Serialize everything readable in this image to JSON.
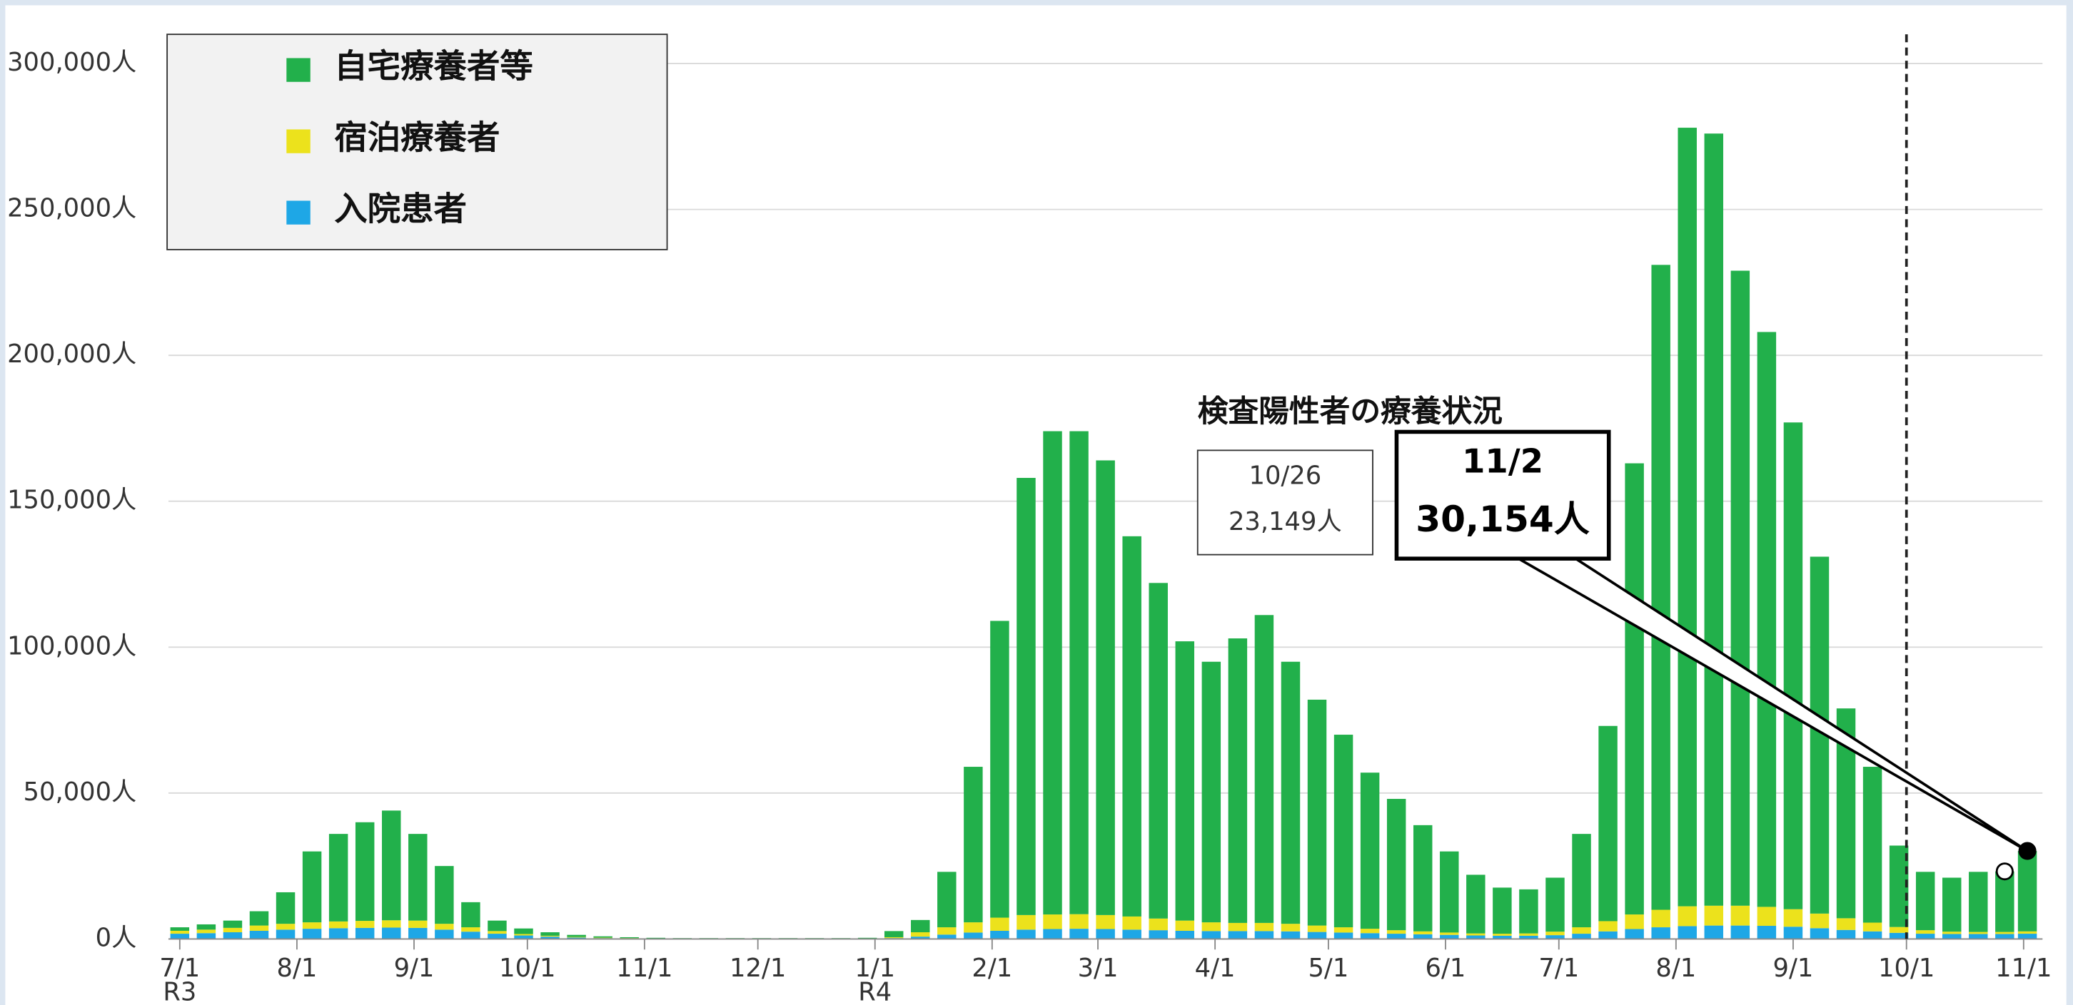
{
  "chart_data": {
    "type": "stacked_bar",
    "annotations": {
      "title": "検査陽性者の療養状況",
      "callouts": [
        {
          "lines": [
            "10/26",
            "23,149人"
          ]
        },
        {
          "lines": [
            "11/2",
            "30,154人"
          ]
        }
      ]
    },
    "x": [
      0,
      7,
      14,
      21,
      28,
      35,
      42,
      49,
      56,
      63,
      70,
      77,
      84,
      91,
      98,
      105,
      112,
      119,
      126,
      133,
      140,
      147,
      154,
      161,
      168,
      175,
      182,
      189,
      196,
      203,
      210,
      217,
      224,
      231,
      238,
      245,
      252,
      259,
      266,
      273,
      280,
      287,
      294,
      301,
      308,
      315,
      322,
      329,
      336,
      343,
      350,
      357,
      364,
      371,
      378,
      385,
      392,
      399,
      406,
      413,
      420,
      427,
      434,
      441,
      448,
      455,
      462,
      469,
      476,
      483,
      489
    ],
    "series": [
      {
        "name": "自宅療養者等",
        "color": "#22b04b",
        "values": [
          1200,
          1800,
          2500,
          4900,
          10800,
          24300,
          30000,
          33800,
          37600,
          29700,
          19800,
          8600,
          3600,
          1900,
          1200,
          700,
          450,
          300,
          200,
          100,
          100,
          100,
          100,
          100,
          100,
          100,
          200,
          2100,
          4200,
          19000,
          53300,
          101700,
          149800,
          165600,
          165500,
          155800,
          130300,
          115000,
          95700,
          89300,
          97500,
          105500,
          89800,
          77400,
          66000,
          53500,
          45000,
          36400,
          27800,
          20100,
          15800,
          15100,
          18500,
          32000,
          66900,
          154600,
          221000,
          266800,
          264600,
          217600,
          197000,
          166800,
          122300,
          71900,
          53400,
          27900,
          20000,
          18500,
          20600,
          20749,
          27554
        ]
      },
      {
        "name": "宿泊療養者",
        "color": "#ece21c",
        "values": [
          1000,
          1200,
          1500,
          1800,
          2000,
          2200,
          2300,
          2400,
          2500,
          2500,
          2000,
          1500,
          900,
          500,
          300,
          200,
          150,
          100,
          50,
          50,
          50,
          50,
          50,
          50,
          50,
          50,
          50,
          300,
          1500,
          2500,
          3500,
          4500,
          5000,
          5000,
          5000,
          4800,
          4500,
          4000,
          3500,
          3000,
          2800,
          2800,
          2600,
          2200,
          1800,
          1500,
          1200,
          1000,
          800,
          700,
          700,
          800,
          1200,
          2200,
          3500,
          5000,
          6000,
          6800,
          6800,
          6800,
          6500,
          6000,
          5000,
          4000,
          3000,
          2000,
          1200,
          800,
          700,
          700,
          800
        ]
      },
      {
        "name": "入院患者",
        "color": "#1ea7e6",
        "values": [
          1800,
          2000,
          2300,
          2800,
          3200,
          3500,
          3700,
          3800,
          3900,
          3800,
          3200,
          2500,
          1800,
          1200,
          800,
          500,
          300,
          200,
          150,
          150,
          150,
          150,
          150,
          150,
          150,
          150,
          150,
          300,
          800,
          1500,
          2200,
          2800,
          3200,
          3400,
          3500,
          3400,
          3200,
          3000,
          2800,
          2700,
          2700,
          2700,
          2600,
          2400,
          2200,
          2000,
          1800,
          1600,
          1400,
          1200,
          1100,
          1100,
          1300,
          1800,
          2600,
          3400,
          4000,
          4400,
          4600,
          4600,
          4500,
          4200,
          3700,
          3100,
          2600,
          2100,
          1800,
          1700,
          1700,
          1700,
          1800
        ]
      }
    ],
    "xlim": [
      -3,
      493
    ],
    "xticks": [
      {
        "value": 0,
        "label": "7/1"
      },
      {
        "value": 31,
        "label": "8/1"
      },
      {
        "value": 62,
        "label": "9/1"
      },
      {
        "value": 92,
        "label": "10/1"
      },
      {
        "value": 123,
        "label": "11/1"
      },
      {
        "value": 153,
        "label": "12/1"
      },
      {
        "value": 184,
        "label": "1/1"
      },
      {
        "value": 215,
        "label": "2/1"
      },
      {
        "value": 243,
        "label": "3/1"
      },
      {
        "value": 274,
        "label": "4/1"
      },
      {
        "value": 304,
        "label": "5/1"
      },
      {
        "value": 335,
        "label": "6/1"
      },
      {
        "value": 365,
        "label": "7/1"
      },
      {
        "value": 396,
        "label": "8/1"
      },
      {
        "value": 427,
        "label": "9/1"
      },
      {
        "value": 457,
        "label": "10/1"
      },
      {
        "value": 488,
        "label": "11/1"
      }
    ],
    "x_sublabels": [
      {
        "value": 0,
        "label": "R3"
      },
      {
        "value": 184,
        "label": "R4"
      }
    ],
    "ylim": [
      0,
      310000
    ],
    "yticks": [
      {
        "value": 0,
        "label": "0人"
      },
      {
        "value": 50000,
        "label": "50,000人"
      },
      {
        "value": 100000,
        "label": "100,000人"
      },
      {
        "value": 150000,
        "label": "150,000人"
      },
      {
        "value": 200000,
        "label": "200,000人"
      },
      {
        "value": 250000,
        "label": "250,000人"
      },
      {
        "value": 300000,
        "label": "300,000人"
      }
    ],
    "grid": true,
    "legend": "upper left",
    "marker_line_x": 457,
    "highlight_points": [
      69,
      70
    ]
  }
}
